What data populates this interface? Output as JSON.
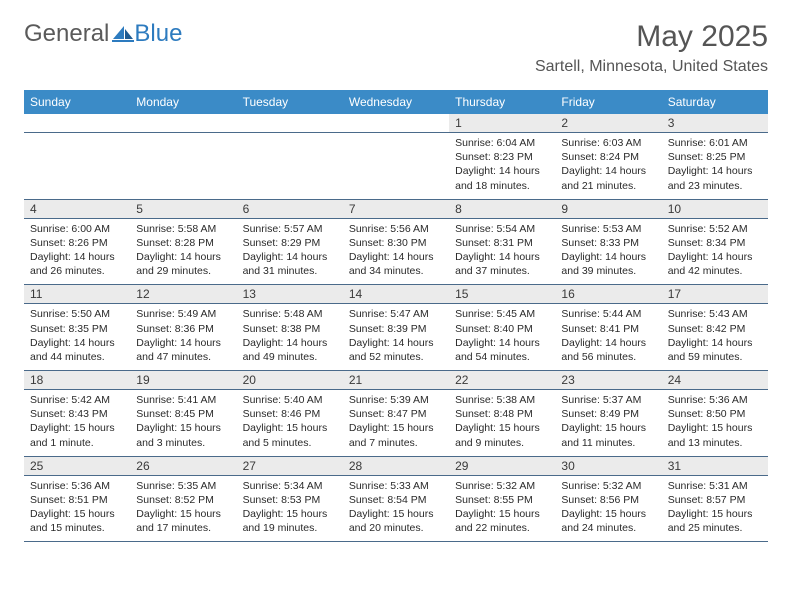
{
  "logo": {
    "text1": "General",
    "text2": "Blue"
  },
  "header": {
    "month_title": "May 2025",
    "location": "Sartell, Minnesota, United States"
  },
  "colors": {
    "header_bg": "#3b8bc7",
    "header_text": "#ffffff",
    "daynum_bg": "#ebebeb",
    "accent": "#2d7bbf",
    "text": "#3a3a3a",
    "border": "#4a6a8a"
  },
  "day_names": [
    "Sunday",
    "Monday",
    "Tuesday",
    "Wednesday",
    "Thursday",
    "Friday",
    "Saturday"
  ],
  "weeks": [
    [
      null,
      null,
      null,
      null,
      {
        "n": "1",
        "sr": "Sunrise: 6:04 AM",
        "ss": "Sunset: 8:23 PM",
        "d1": "Daylight: 14 hours",
        "d2": "and 18 minutes."
      },
      {
        "n": "2",
        "sr": "Sunrise: 6:03 AM",
        "ss": "Sunset: 8:24 PM",
        "d1": "Daylight: 14 hours",
        "d2": "and 21 minutes."
      },
      {
        "n": "3",
        "sr": "Sunrise: 6:01 AM",
        "ss": "Sunset: 8:25 PM",
        "d1": "Daylight: 14 hours",
        "d2": "and 23 minutes."
      }
    ],
    [
      {
        "n": "4",
        "sr": "Sunrise: 6:00 AM",
        "ss": "Sunset: 8:26 PM",
        "d1": "Daylight: 14 hours",
        "d2": "and 26 minutes."
      },
      {
        "n": "5",
        "sr": "Sunrise: 5:58 AM",
        "ss": "Sunset: 8:28 PM",
        "d1": "Daylight: 14 hours",
        "d2": "and 29 minutes."
      },
      {
        "n": "6",
        "sr": "Sunrise: 5:57 AM",
        "ss": "Sunset: 8:29 PM",
        "d1": "Daylight: 14 hours",
        "d2": "and 31 minutes."
      },
      {
        "n": "7",
        "sr": "Sunrise: 5:56 AM",
        "ss": "Sunset: 8:30 PM",
        "d1": "Daylight: 14 hours",
        "d2": "and 34 minutes."
      },
      {
        "n": "8",
        "sr": "Sunrise: 5:54 AM",
        "ss": "Sunset: 8:31 PM",
        "d1": "Daylight: 14 hours",
        "d2": "and 37 minutes."
      },
      {
        "n": "9",
        "sr": "Sunrise: 5:53 AM",
        "ss": "Sunset: 8:33 PM",
        "d1": "Daylight: 14 hours",
        "d2": "and 39 minutes."
      },
      {
        "n": "10",
        "sr": "Sunrise: 5:52 AM",
        "ss": "Sunset: 8:34 PM",
        "d1": "Daylight: 14 hours",
        "d2": "and 42 minutes."
      }
    ],
    [
      {
        "n": "11",
        "sr": "Sunrise: 5:50 AM",
        "ss": "Sunset: 8:35 PM",
        "d1": "Daylight: 14 hours",
        "d2": "and 44 minutes."
      },
      {
        "n": "12",
        "sr": "Sunrise: 5:49 AM",
        "ss": "Sunset: 8:36 PM",
        "d1": "Daylight: 14 hours",
        "d2": "and 47 minutes."
      },
      {
        "n": "13",
        "sr": "Sunrise: 5:48 AM",
        "ss": "Sunset: 8:38 PM",
        "d1": "Daylight: 14 hours",
        "d2": "and 49 minutes."
      },
      {
        "n": "14",
        "sr": "Sunrise: 5:47 AM",
        "ss": "Sunset: 8:39 PM",
        "d1": "Daylight: 14 hours",
        "d2": "and 52 minutes."
      },
      {
        "n": "15",
        "sr": "Sunrise: 5:45 AM",
        "ss": "Sunset: 8:40 PM",
        "d1": "Daylight: 14 hours",
        "d2": "and 54 minutes."
      },
      {
        "n": "16",
        "sr": "Sunrise: 5:44 AM",
        "ss": "Sunset: 8:41 PM",
        "d1": "Daylight: 14 hours",
        "d2": "and 56 minutes."
      },
      {
        "n": "17",
        "sr": "Sunrise: 5:43 AM",
        "ss": "Sunset: 8:42 PM",
        "d1": "Daylight: 14 hours",
        "d2": "and 59 minutes."
      }
    ],
    [
      {
        "n": "18",
        "sr": "Sunrise: 5:42 AM",
        "ss": "Sunset: 8:43 PM",
        "d1": "Daylight: 15 hours",
        "d2": "and 1 minute."
      },
      {
        "n": "19",
        "sr": "Sunrise: 5:41 AM",
        "ss": "Sunset: 8:45 PM",
        "d1": "Daylight: 15 hours",
        "d2": "and 3 minutes."
      },
      {
        "n": "20",
        "sr": "Sunrise: 5:40 AM",
        "ss": "Sunset: 8:46 PM",
        "d1": "Daylight: 15 hours",
        "d2": "and 5 minutes."
      },
      {
        "n": "21",
        "sr": "Sunrise: 5:39 AM",
        "ss": "Sunset: 8:47 PM",
        "d1": "Daylight: 15 hours",
        "d2": "and 7 minutes."
      },
      {
        "n": "22",
        "sr": "Sunrise: 5:38 AM",
        "ss": "Sunset: 8:48 PM",
        "d1": "Daylight: 15 hours",
        "d2": "and 9 minutes."
      },
      {
        "n": "23",
        "sr": "Sunrise: 5:37 AM",
        "ss": "Sunset: 8:49 PM",
        "d1": "Daylight: 15 hours",
        "d2": "and 11 minutes."
      },
      {
        "n": "24",
        "sr": "Sunrise: 5:36 AM",
        "ss": "Sunset: 8:50 PM",
        "d1": "Daylight: 15 hours",
        "d2": "and 13 minutes."
      }
    ],
    [
      {
        "n": "25",
        "sr": "Sunrise: 5:36 AM",
        "ss": "Sunset: 8:51 PM",
        "d1": "Daylight: 15 hours",
        "d2": "and 15 minutes."
      },
      {
        "n": "26",
        "sr": "Sunrise: 5:35 AM",
        "ss": "Sunset: 8:52 PM",
        "d1": "Daylight: 15 hours",
        "d2": "and 17 minutes."
      },
      {
        "n": "27",
        "sr": "Sunrise: 5:34 AM",
        "ss": "Sunset: 8:53 PM",
        "d1": "Daylight: 15 hours",
        "d2": "and 19 minutes."
      },
      {
        "n": "28",
        "sr": "Sunrise: 5:33 AM",
        "ss": "Sunset: 8:54 PM",
        "d1": "Daylight: 15 hours",
        "d2": "and 20 minutes."
      },
      {
        "n": "29",
        "sr": "Sunrise: 5:32 AM",
        "ss": "Sunset: 8:55 PM",
        "d1": "Daylight: 15 hours",
        "d2": "and 22 minutes."
      },
      {
        "n": "30",
        "sr": "Sunrise: 5:32 AM",
        "ss": "Sunset: 8:56 PM",
        "d1": "Daylight: 15 hours",
        "d2": "and 24 minutes."
      },
      {
        "n": "31",
        "sr": "Sunrise: 5:31 AM",
        "ss": "Sunset: 8:57 PM",
        "d1": "Daylight: 15 hours",
        "d2": "and 25 minutes."
      }
    ]
  ]
}
